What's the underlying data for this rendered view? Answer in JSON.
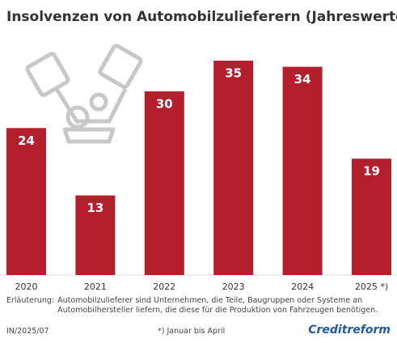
{
  "chart_data": {
    "type": "bar",
    "title": "Insolvenzen von Automobilzulieferern (Jahreswerte)",
    "categories": [
      "2020",
      "2021",
      "2022",
      "2023",
      "2024",
      "2025 *)"
    ],
    "values": [
      24,
      13,
      30,
      35,
      34,
      19
    ],
    "color": "#b31f2d"
  },
  "footer": {
    "note_label": "Erläuterung:",
    "note": "Automobilzulieferer sind Unternehmen, die Teile, Baugruppen oder Systeme an Automobilhersteller liefern, die diese für die Produktion von Fahrzeugen benötigen.",
    "code": "IN/2025/07",
    "footnote": "*) Januar bis April",
    "brand": "Creditreform"
  }
}
